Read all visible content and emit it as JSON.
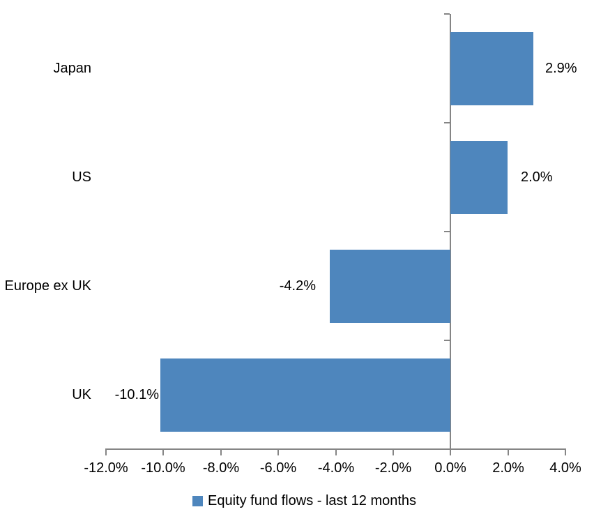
{
  "chart_data": {
    "type": "bar",
    "orientation": "horizontal",
    "title": "",
    "categories": [
      "Japan",
      "US",
      "Europe ex UK",
      "UK"
    ],
    "values": [
      2.9,
      2.0,
      -4.2,
      -10.1
    ],
    "data_labels": [
      "2.9%",
      "2.0%",
      "-4.2%",
      "-10.1%"
    ],
    "series_name": "Equity fund flows - last 12 months",
    "xlim": [
      -12.0,
      4.0
    ],
    "x_tick_step": 2.0,
    "x_tick_labels": [
      "-12.0%",
      "-10.0%",
      "-8.0%",
      "-6.0%",
      "-4.0%",
      "-2.0%",
      "0.0%",
      "2.0%",
      "4.0%"
    ],
    "grid": false,
    "legend_position": "bottom",
    "bar_color": "#4e86bd",
    "axis_color": "#858585",
    "text_color": "#000000",
    "background_color": "#ffffff"
  },
  "legend": {
    "label": "Equity fund flows - last 12 months"
  }
}
